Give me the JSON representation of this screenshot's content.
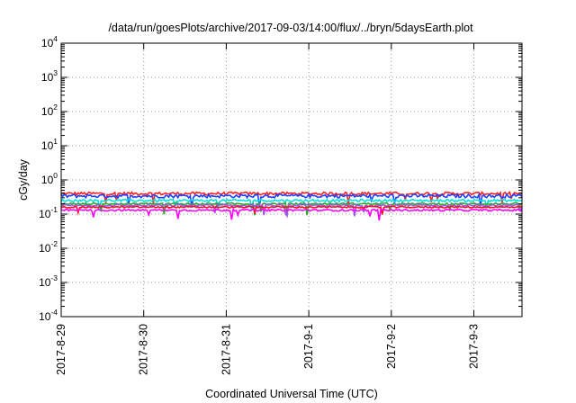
{
  "chart_data": {
    "type": "line",
    "title": "/data/run/goesPlots/archive/2017-09-03/14:00/flux/../bryn/5daysEarth.plot",
    "xlabel": "Coordinated Universal Time (UTC)",
    "ylabel": "cGy/day",
    "yscale": "log",
    "ylim": [
      0.0001,
      10000
    ],
    "yticks": [
      {
        "base": "10",
        "exp": "4"
      },
      {
        "base": "10",
        "exp": "3"
      },
      {
        "base": "10",
        "exp": "2"
      },
      {
        "base": "10",
        "exp": "1"
      },
      {
        "base": "10",
        "exp": "0"
      },
      {
        "base": "10",
        "exp": "-1"
      },
      {
        "base": "10",
        "exp": "-2"
      },
      {
        "base": "10",
        "exp": "-3"
      },
      {
        "base": "10",
        "exp": "-4"
      }
    ],
    "xlim": [
      "2017-08-29T00:00",
      "2017-09-03T14:00"
    ],
    "xticks": [
      "2017-8-29",
      "2017-8-30",
      "2017-8-31",
      "2017-9-1",
      "2017-9-2",
      "2017-9-3"
    ],
    "grid": true,
    "series": [
      {
        "color": "#ff2020",
        "level": 0.4,
        "spread": 0.1
      },
      {
        "color": "#2040ff",
        "level": 0.34,
        "spread": 0.12
      },
      {
        "color": "#00e0e0",
        "level": 0.25,
        "spread": 0.08
      },
      {
        "color": "#20b020",
        "level": 0.2,
        "spread": 0.06
      },
      {
        "color": "#a050ff",
        "level": 0.18,
        "spread": 0.06
      },
      {
        "color": "#ff1010",
        "level": 0.16,
        "spread": 0.05
      },
      {
        "color": "#ff00ff",
        "level": 0.13,
        "spread": 0.06
      }
    ]
  }
}
